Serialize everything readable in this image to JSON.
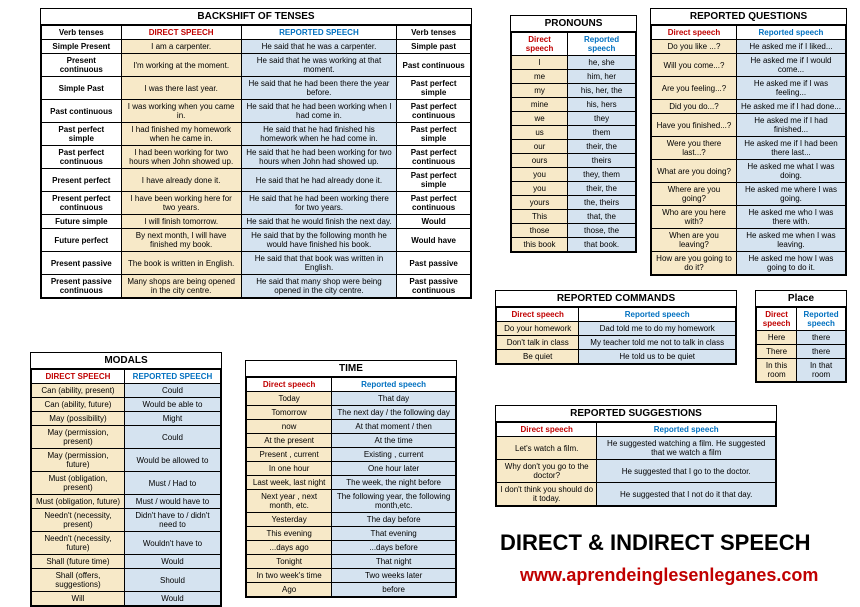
{
  "colors": {
    "direct_header": "#c00000",
    "reported_header": "#0070c0",
    "direct_bg": "#f7e9c8",
    "reported_bg": "#d5e3f0",
    "border": "#000000",
    "label_bg": "#ffffff"
  },
  "backshift": {
    "title": "BACKSHIFT OF TENSES",
    "headers": [
      "Verb tenses",
      "DIRECT SPEECH",
      "REPORTED SPEECH",
      "Verb tenses"
    ],
    "rows": [
      [
        "Simple Present",
        "I am a carpenter.",
        "He said that he was a carpenter.",
        "Simple past"
      ],
      [
        "Present continuous",
        "I'm working at the moment.",
        "He said that he was working at that moment.",
        "Past continuous"
      ],
      [
        "Simple Past",
        "I was there last year.",
        "He said that he had been there the year before.",
        "Past perfect simple"
      ],
      [
        "Past continuous",
        "I was working when you came in.",
        "He said that he had been working when I had come in.",
        "Past perfect continuous"
      ],
      [
        "Past perfect simple",
        "I had finished my homework when he came in.",
        "He said that he had finished his homework when he had come in.",
        "Past perfect simple"
      ],
      [
        "Past perfect continuous",
        "I had been working for two hours when John showed up.",
        "He said that he had been working for two hours when John had showed up.",
        "Past perfect continuous"
      ],
      [
        "Present perfect",
        "I have already done it.",
        "He said that he had already done it.",
        "Past perfect simple"
      ],
      [
        "Present perfect continuous",
        "I have been working here for two years.",
        "He said that he had been working there for two years.",
        "Past perfect continuous"
      ],
      [
        "Future simple",
        "I will finish tomorrow.",
        "He said that he would finish the next day.",
        "Would"
      ],
      [
        "Future perfect",
        "By next month, I will have finished my book.",
        "He said that by the following month he would have finished his book.",
        "Would have"
      ],
      [
        "Present passive",
        "The book is written in English.",
        "He said that that book was written in English.",
        "Past passive"
      ],
      [
        "Present passive continuous",
        "Many shops are being opened in the city centre.",
        "He said that many shop were being opened in the city centre.",
        "Past passive continuous"
      ]
    ]
  },
  "modals": {
    "title": "MODALS",
    "headers": [
      "DIRECT SPEECH",
      "REPORTED SPEECH"
    ],
    "rows": [
      [
        "Can (ability, present)",
        "Could"
      ],
      [
        "Can (ability, future)",
        "Would be able to"
      ],
      [
        "May (possibility)",
        "Might"
      ],
      [
        "May (permission, present)",
        "Could"
      ],
      [
        "May (permission, future)",
        "Would be allowed to"
      ],
      [
        "Must (obligation, present)",
        "Must / Had to"
      ],
      [
        "Must (obligation, future)",
        "Must / would have to"
      ],
      [
        "Needn't (necessity, present)",
        "Didn't have to / didn't need to"
      ],
      [
        "Needn't (necessity, future)",
        "Wouldn't have to"
      ],
      [
        "Shall (future time)",
        "Would"
      ],
      [
        "Shall (offers, suggestions)",
        "Should"
      ],
      [
        "Will",
        "Would"
      ]
    ]
  },
  "time": {
    "title": "TIME",
    "headers": [
      "Direct speech",
      "Reported speech"
    ],
    "rows": [
      [
        "Today",
        "That day"
      ],
      [
        "Tomorrow",
        "The next day / the following day"
      ],
      [
        "now",
        "At that moment / then"
      ],
      [
        "At the present",
        "At the time"
      ],
      [
        "Present , current",
        "Existing , current"
      ],
      [
        "In one hour",
        "One hour later"
      ],
      [
        "Last week, last night",
        "The week, the night before"
      ],
      [
        "Next year , next month, etc.",
        "The following year, the following month,etc."
      ],
      [
        "Yesterday",
        "The day before"
      ],
      [
        "This evening",
        "That evening"
      ],
      [
        "...days ago",
        "...days before"
      ],
      [
        "Tonight",
        "That night"
      ],
      [
        "In two week's time",
        "Two weeks later"
      ],
      [
        "Ago",
        "before"
      ]
    ]
  },
  "pronouns": {
    "title": "PRONOUNS",
    "headers": [
      "Direct speech",
      "Reported speech"
    ],
    "rows": [
      [
        "I",
        "he, she"
      ],
      [
        "me",
        "him, her"
      ],
      [
        "my",
        "his, her, the"
      ],
      [
        "mine",
        "his, hers"
      ],
      [
        "we",
        "they"
      ],
      [
        "us",
        "them"
      ],
      [
        "our",
        "their, the"
      ],
      [
        "ours",
        "theirs"
      ],
      [
        "you",
        "they, them"
      ],
      [
        "you",
        "their, the"
      ],
      [
        "yours",
        "the, theirs"
      ],
      [
        "This",
        "that, the"
      ],
      [
        "those",
        "those, the"
      ],
      [
        "this book",
        "that book."
      ]
    ]
  },
  "questions": {
    "title": "REPORTED QUESTIONS",
    "headers": [
      "Direct speech",
      "Reported speech"
    ],
    "rows": [
      [
        "Do you like ...?",
        "He asked me if I liked..."
      ],
      [
        "Will you come...?",
        "He asked me if I would come..."
      ],
      [
        "Are you feeling...?",
        "He asked me if I was feeling..."
      ],
      [
        "Did you do...?",
        "He asked me if I had done..."
      ],
      [
        "Have you finished...?",
        "He asked me if I had finished..."
      ],
      [
        "Were you there last...?",
        "He asked me if I had been there last..."
      ],
      [
        "What are you doing?",
        "He asked me what I was doing."
      ],
      [
        "Where are you going?",
        "He asked me where I was going."
      ],
      [
        "Who are you here with?",
        "He asked me who I was there with."
      ],
      [
        "When are you leaving?",
        "He asked me when I was leaving."
      ],
      [
        "How are you going to do it?",
        "He asked me how I was going to do it."
      ]
    ]
  },
  "commands": {
    "title": "REPORTED COMMANDS",
    "headers": [
      "Direct speech",
      "Reported speech"
    ],
    "rows": [
      [
        "Do your homework",
        "Dad told me to do my homework"
      ],
      [
        "Don't talk in class",
        "My teacher told me not to talk in class"
      ],
      [
        "Be quiet",
        "He told us to be quiet"
      ]
    ]
  },
  "place": {
    "title": "Place",
    "headers": [
      "Direct speech",
      "Reported speech"
    ],
    "rows": [
      [
        "Here",
        "there"
      ],
      [
        "There",
        "there"
      ],
      [
        "In this room",
        "In that room"
      ]
    ]
  },
  "suggestions": {
    "title": "REPORTED SUGGESTIONS",
    "headers": [
      "Direct speech",
      "Reported speech"
    ],
    "rows": [
      [
        "Let's watch a film.",
        "He suggested watching a film. He suggested that we watch a film"
      ],
      [
        "Why don't you go to the doctor?",
        "He suggested that I go to the doctor."
      ],
      [
        "I don't think you should do it today.",
        "He suggested that I not do it that day."
      ]
    ]
  },
  "footer": {
    "title": "DIRECT & INDIRECT SPEECH",
    "link": "www.aprendeinglesenleganes.com"
  }
}
